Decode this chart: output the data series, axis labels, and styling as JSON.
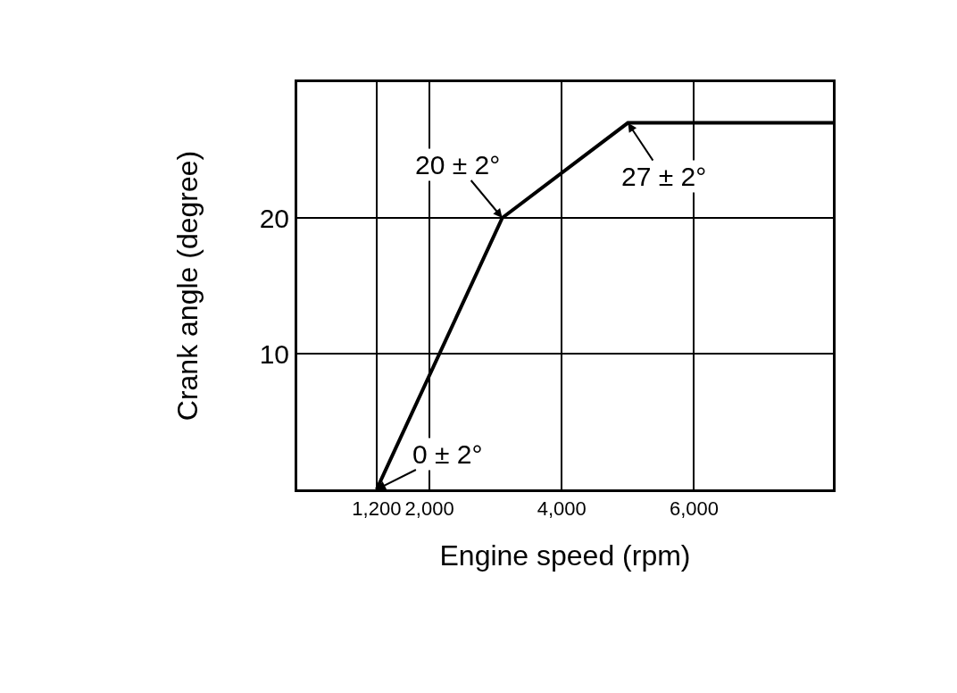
{
  "chart_data": {
    "type": "line",
    "xlabel": "Engine speed (rpm)",
    "ylabel": "Crank angle (degree)",
    "x": [
      1200,
      3100,
      5000,
      8100
    ],
    "series": [
      {
        "color": "#000000",
        "values": [
          0,
          20,
          27,
          27
        ]
      }
    ],
    "xlim": [
      0,
      8100
    ],
    "xticks": [
      {
        "value": 1200,
        "label": "1,200"
      },
      {
        "value": 2000,
        "label": "2,000"
      },
      {
        "value": 4000,
        "label": "4,000"
      },
      {
        "value": 6000,
        "label": "6,000"
      }
    ],
    "ylim": [
      0,
      30
    ],
    "yticks": [
      10,
      20
    ],
    "grid": true,
    "marker": "none",
    "line_style": "solid",
    "annotations": [
      {
        "text": "20 ± 2°",
        "x": 3100,
        "y": 20
      },
      {
        "text": "27 ± 2°",
        "x": 5000,
        "y": 27
      },
      {
        "text": "0 ± 2°",
        "x": 1200,
        "y": 0
      }
    ]
  }
}
